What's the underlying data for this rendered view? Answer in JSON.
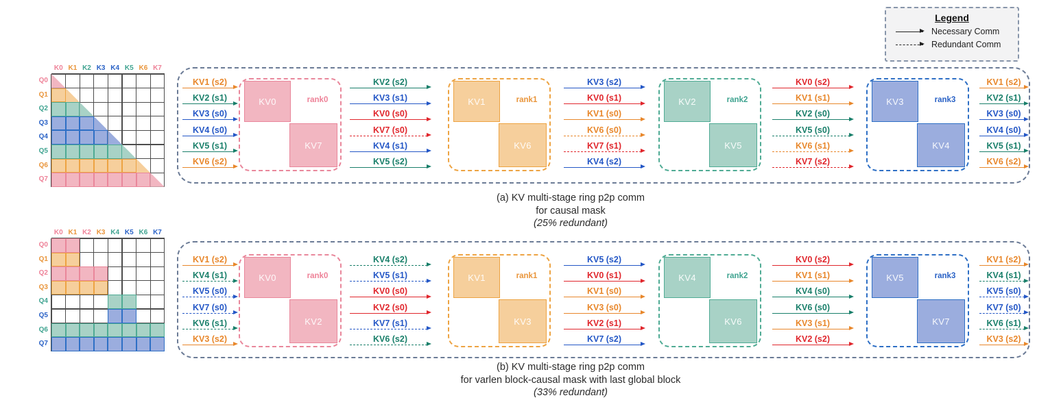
{
  "colors": {
    "rank0": {
      "fill": "#f2b6c1",
      "border": "#e9879b",
      "text": "#ee8298"
    },
    "rank1": {
      "fill": "#f6cf9c",
      "border": "#eda342",
      "text": "#e9953b"
    },
    "rank2": {
      "fill": "#a8d2c6",
      "border": "#4fab94",
      "text": "#3fa390"
    },
    "rank3": {
      "fill": "#9badde",
      "border": "#2e6fc5",
      "text": "#2a62c6"
    },
    "arrows": {
      "red": "#e0262c",
      "orange": "#e8872b",
      "teal": "#197f6a",
      "blue": "#2457c6"
    },
    "panel_border": "#6b7b96",
    "grid_line": "#4c4c4c",
    "legend_bg": "#f3f3f4"
  },
  "legend": {
    "title": "Legend",
    "items": [
      {
        "style": "solid",
        "label": "Necessary Comm"
      },
      {
        "style": "dashed",
        "label": "Redundant Comm"
      }
    ]
  },
  "panels": [
    {
      "caption": [
        "(a) KV multi-stage ring p2p comm",
        "for causal mask",
        "(25% redundant)"
      ],
      "grid": {
        "cols": [
          {
            "t": "K0",
            "c": "rank0"
          },
          {
            "t": "K1",
            "c": "rank1"
          },
          {
            "t": "K2",
            "c": "rank2"
          },
          {
            "t": "K3",
            "c": "rank3"
          },
          {
            "t": "K4",
            "c": "rank3"
          },
          {
            "t": "K5",
            "c": "rank2"
          },
          {
            "t": "K6",
            "c": "rank1"
          },
          {
            "t": "K7",
            "c": "rank0"
          }
        ],
        "rows": [
          {
            "t": "Q0",
            "c": "rank0",
            "full": [],
            "diag": 0
          },
          {
            "t": "Q1",
            "c": "rank1",
            "full": [
              0
            ],
            "diag": 1
          },
          {
            "t": "Q2",
            "c": "rank2",
            "full": [
              0,
              1
            ],
            "diag": 2
          },
          {
            "t": "Q3",
            "c": "rank3",
            "full": [
              0,
              1,
              2
            ],
            "diag": 3
          },
          {
            "t": "Q4",
            "c": "rank3",
            "full": [
              0,
              1,
              2,
              3
            ],
            "diag": 4
          },
          {
            "t": "Q5",
            "c": "rank2",
            "full": [
              0,
              1,
              2,
              3,
              4
            ],
            "diag": 5
          },
          {
            "t": "Q6",
            "c": "rank1",
            "full": [
              0,
              1,
              2,
              3,
              4,
              5
            ],
            "diag": 6
          },
          {
            "t": "Q7",
            "c": "rank0",
            "full": [
              0,
              1,
              2,
              3,
              4,
              5,
              6
            ],
            "diag": 7
          }
        ]
      },
      "ranks": [
        {
          "label": "rank0",
          "c": "rank0",
          "top": "KV0",
          "bottom": "KV7"
        },
        {
          "label": "rank1",
          "c": "rank1",
          "top": "KV1",
          "bottom": "KV6"
        },
        {
          "label": "rank2",
          "c": "rank2",
          "top": "KV2",
          "bottom": "KV5"
        },
        {
          "label": "rank3",
          "c": "rank3",
          "top": "KV3",
          "bottom": "KV4"
        }
      ],
      "arrow_groups": [
        [
          {
            "t": "KV1 (s2)",
            "c": "orange",
            "s": "solid"
          },
          {
            "t": "KV2 (s1)",
            "c": "teal",
            "s": "solid"
          },
          {
            "t": "KV3 (s0)",
            "c": "blue",
            "s": "solid"
          },
          {
            "t": "KV4 (s0)",
            "c": "blue",
            "s": "solid"
          },
          {
            "t": "KV5 (s1)",
            "c": "teal",
            "s": "solid"
          },
          {
            "t": "KV6 (s2)",
            "c": "orange",
            "s": "solid"
          }
        ],
        [
          {
            "t": "KV2 (s2)",
            "c": "teal",
            "s": "solid"
          },
          {
            "t": "KV3 (s1)",
            "c": "blue",
            "s": "solid"
          },
          {
            "t": "KV0 (s0)",
            "c": "red",
            "s": "solid"
          },
          {
            "t": "KV7 (s0)",
            "c": "red",
            "s": "dashed"
          },
          {
            "t": "KV4 (s1)",
            "c": "blue",
            "s": "solid"
          },
          {
            "t": "KV5 (s2)",
            "c": "teal",
            "s": "solid"
          }
        ],
        [
          {
            "t": "KV3 (s2)",
            "c": "blue",
            "s": "solid"
          },
          {
            "t": "KV0 (s1)",
            "c": "red",
            "s": "solid"
          },
          {
            "t": "KV1 (s0)",
            "c": "orange",
            "s": "solid"
          },
          {
            "t": "KV6 (s0)",
            "c": "orange",
            "s": "dashed"
          },
          {
            "t": "KV7 (s1)",
            "c": "red",
            "s": "dashed"
          },
          {
            "t": "KV4 (s2)",
            "c": "blue",
            "s": "solid"
          }
        ],
        [
          {
            "t": "KV0 (s2)",
            "c": "red",
            "s": "solid"
          },
          {
            "t": "KV1 (s1)",
            "c": "orange",
            "s": "solid"
          },
          {
            "t": "KV2 (s0)",
            "c": "teal",
            "s": "solid"
          },
          {
            "t": "KV5 (s0)",
            "c": "teal",
            "s": "dashed"
          },
          {
            "t": "KV6 (s1)",
            "c": "orange",
            "s": "dashed"
          },
          {
            "t": "KV7 (s2)",
            "c": "red",
            "s": "dashed"
          }
        ],
        [
          {
            "t": "KV1 (s2)",
            "c": "orange",
            "s": "solid"
          },
          {
            "t": "KV2 (s1)",
            "c": "teal",
            "s": "solid"
          },
          {
            "t": "KV3 (s0)",
            "c": "blue",
            "s": "solid"
          },
          {
            "t": "KV4 (s0)",
            "c": "blue",
            "s": "solid"
          },
          {
            "t": "KV5 (s1)",
            "c": "teal",
            "s": "solid"
          },
          {
            "t": "KV6 (s2)",
            "c": "orange",
            "s": "solid"
          }
        ]
      ]
    },
    {
      "caption": [
        "(b) KV multi-stage ring p2p comm",
        "for varlen block-causal mask with last global block",
        "(33% redundant)"
      ],
      "grid": {
        "cols": [
          {
            "t": "K0",
            "c": "rank0"
          },
          {
            "t": "K1",
            "c": "rank1"
          },
          {
            "t": "K2",
            "c": "rank0"
          },
          {
            "t": "K3",
            "c": "rank1"
          },
          {
            "t": "K4",
            "c": "rank2"
          },
          {
            "t": "K5",
            "c": "rank3"
          },
          {
            "t": "K6",
            "c": "rank2"
          },
          {
            "t": "K7",
            "c": "rank3"
          }
        ],
        "rows": [
          {
            "t": "Q0",
            "c": "rank0",
            "full": [
              0,
              1
            ],
            "diag": null
          },
          {
            "t": "Q1",
            "c": "rank1",
            "full": [
              0,
              1
            ],
            "diag": null
          },
          {
            "t": "Q2",
            "c": "rank0",
            "full": [
              0,
              1,
              2,
              3
            ],
            "diag": null
          },
          {
            "t": "Q3",
            "c": "rank1",
            "full": [
              0,
              1,
              2,
              3
            ],
            "diag": null
          },
          {
            "t": "Q4",
            "c": "rank2",
            "full": [
              4,
              5
            ],
            "diag": null
          },
          {
            "t": "Q5",
            "c": "rank3",
            "full": [
              4,
              5
            ],
            "diag": null
          },
          {
            "t": "Q6",
            "c": "rank2",
            "full": [
              0,
              1,
              2,
              3,
              4,
              5,
              6,
              7
            ],
            "diag": null
          },
          {
            "t": "Q7",
            "c": "rank3",
            "full": [
              0,
              1,
              2,
              3,
              4,
              5,
              6,
              7
            ],
            "diag": null
          }
        ]
      },
      "ranks": [
        {
          "label": "rank0",
          "c": "rank0",
          "top": "KV0",
          "bottom": "KV2"
        },
        {
          "label": "rank1",
          "c": "rank1",
          "top": "KV1",
          "bottom": "KV3"
        },
        {
          "label": "rank2",
          "c": "rank2",
          "top": "KV4",
          "bottom": "KV6"
        },
        {
          "label": "rank3",
          "c": "rank3",
          "top": "KV5",
          "bottom": "KV7"
        }
      ],
      "arrow_groups": [
        [
          {
            "t": "KV1 (s2)",
            "c": "orange",
            "s": "solid"
          },
          {
            "t": "KV4 (s1)",
            "c": "teal",
            "s": "dashed"
          },
          {
            "t": "KV5 (s0)",
            "c": "blue",
            "s": "dashed"
          },
          {
            "t": "KV7 (s0)",
            "c": "blue",
            "s": "dashed"
          },
          {
            "t": "KV6 (s1)",
            "c": "teal",
            "s": "dashed"
          },
          {
            "t": "KV3 (s2)",
            "c": "orange",
            "s": "solid"
          }
        ],
        [
          {
            "t": "KV4 (s2)",
            "c": "teal",
            "s": "dashed"
          },
          {
            "t": "KV5 (s1)",
            "c": "blue",
            "s": "dashed"
          },
          {
            "t": "KV0 (s0)",
            "c": "red",
            "s": "solid"
          },
          {
            "t": "KV2 (s0)",
            "c": "red",
            "s": "solid"
          },
          {
            "t": "KV7 (s1)",
            "c": "blue",
            "s": "dashed"
          },
          {
            "t": "KV6 (s2)",
            "c": "teal",
            "s": "dashed"
          }
        ],
        [
          {
            "t": "KV5 (s2)",
            "c": "blue",
            "s": "solid"
          },
          {
            "t": "KV0 (s1)",
            "c": "red",
            "s": "solid"
          },
          {
            "t": "KV1 (s0)",
            "c": "orange",
            "s": "solid"
          },
          {
            "t": "KV3 (s0)",
            "c": "orange",
            "s": "solid"
          },
          {
            "t": "KV2 (s1)",
            "c": "red",
            "s": "solid"
          },
          {
            "t": "KV7 (s2)",
            "c": "blue",
            "s": "solid"
          }
        ],
        [
          {
            "t": "KV0 (s2)",
            "c": "red",
            "s": "solid"
          },
          {
            "t": "KV1 (s1)",
            "c": "orange",
            "s": "solid"
          },
          {
            "t": "KV4 (s0)",
            "c": "teal",
            "s": "solid"
          },
          {
            "t": "KV6 (s0)",
            "c": "teal",
            "s": "solid"
          },
          {
            "t": "KV3 (s1)",
            "c": "orange",
            "s": "solid"
          },
          {
            "t": "KV2 (s2)",
            "c": "red",
            "s": "solid"
          }
        ],
        [
          {
            "t": "KV1 (s2)",
            "c": "orange",
            "s": "solid"
          },
          {
            "t": "KV4 (s1)",
            "c": "teal",
            "s": "dashed"
          },
          {
            "t": "KV5 (s0)",
            "c": "blue",
            "s": "dashed"
          },
          {
            "t": "KV7 (s0)",
            "c": "blue",
            "s": "dashed"
          },
          {
            "t": "KV6 (s1)",
            "c": "teal",
            "s": "dashed"
          },
          {
            "t": "KV3 (s2)",
            "c": "orange",
            "s": "solid"
          }
        ]
      ]
    }
  ]
}
